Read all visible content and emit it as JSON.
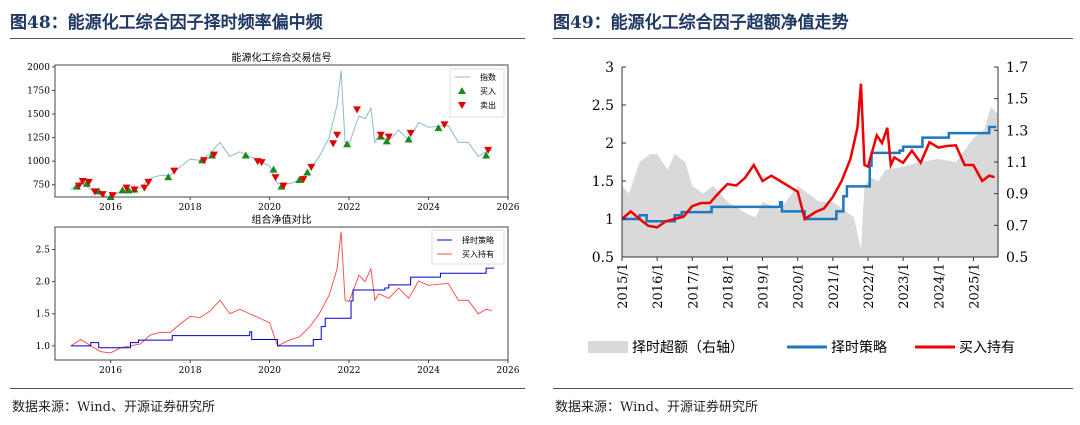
{
  "left": {
    "title": "图48：能源化工综合因子择时频率偏中频",
    "source": "数据来源：Wind、开源证券研究所"
  },
  "right": {
    "title": "图49：能源化工综合因子超额净值走势",
    "source": "数据来源：Wind、开源证券研究所"
  },
  "chart_data": [
    {
      "type": "line",
      "title": "能源化工综合交易信号",
      "xlim": [
        2014.6,
        2026
      ],
      "ylim": [
        620,
        2020
      ],
      "xticks": [
        "2016",
        "2018",
        "2020",
        "2022",
        "2024",
        "2026"
      ],
      "yticks": [
        "750",
        "1000",
        "1250",
        "1500",
        "1750",
        "2000"
      ],
      "legend": "top-right",
      "colors": {
        "index": "#8fb8d0",
        "buy": "#1a8a1a",
        "sell": "#e00000"
      },
      "series": [
        {
          "name": "指数",
          "x": [
            2015.0,
            2015.25,
            2015.5,
            2015.75,
            2016.0,
            2016.25,
            2016.5,
            2016.75,
            2017.0,
            2017.25,
            2017.5,
            2017.75,
            2018.0,
            2018.25,
            2018.5,
            2018.75,
            2019.0,
            2019.25,
            2019.5,
            2019.75,
            2020.0,
            2020.2,
            2020.5,
            2020.75,
            2021.0,
            2021.25,
            2021.5,
            2021.7,
            2021.8,
            2021.9,
            2022.0,
            2022.25,
            2022.4,
            2022.55,
            2022.65,
            2022.75,
            2023.0,
            2023.25,
            2023.5,
            2023.75,
            2024.0,
            2024.25,
            2024.5,
            2024.75,
            2025.0,
            2025.25,
            2025.45,
            2025.6
          ],
          "y": [
            700,
            780,
            700,
            640,
            620,
            680,
            700,
            720,
            820,
            850,
            850,
            940,
            1020,
            1010,
            1080,
            1200,
            1050,
            1100,
            1050,
            1000,
            950,
            760,
            760,
            800,
            900,
            1050,
            1250,
            1600,
            1960,
            1200,
            1180,
            1480,
            1450,
            1560,
            1200,
            1270,
            1220,
            1330,
            1220,
            1410,
            1360,
            1370,
            1380,
            1200,
            1200,
            1050,
            1100,
            1120
          ]
        }
      ],
      "buy": {
        "name": "买入",
        "x": [
          2015.15,
          2015.4,
          2015.7,
          2016.0,
          2016.3,
          2016.45,
          2016.6,
          2017.45,
          2018.3,
          2018.55,
          2019.4,
          2020.1,
          2020.3,
          2020.75,
          2020.95,
          2021.95,
          2022.8,
          2022.95,
          2023.5,
          2024.25,
          2025.45
        ],
        "y": [
          730,
          760,
          680,
          620,
          690,
          690,
          700,
          830,
          1010,
          1060,
          1060,
          910,
          730,
          800,
          880,
          1180,
          1260,
          1210,
          1230,
          1350,
          1060
        ]
      },
      "sell": {
        "name": "卖出",
        "x": [
          2015.2,
          2015.3,
          2015.45,
          2015.6,
          2015.8,
          2016.05,
          2016.4,
          2016.6,
          2016.85,
          2016.95,
          2017.6,
          2018.35,
          2018.6,
          2019.7,
          2019.8,
          2020.15,
          2020.35,
          2020.85,
          2021.05,
          2021.6,
          2021.7,
          2022.2,
          2022.8,
          2023.0,
          2023.55,
          2024.4,
          2025.5
        ],
        "y": [
          740,
          790,
          780,
          680,
          650,
          640,
          720,
          700,
          720,
          780,
          900,
          1010,
          1070,
          1000,
          990,
          830,
          740,
          810,
          940,
          1190,
          1280,
          1550,
          1280,
          1260,
          1300,
          1390,
          1120
        ]
      }
    },
    {
      "type": "line",
      "title": "组合净值对比",
      "xlim": [
        2014.6,
        2026
      ],
      "ylim": [
        0.78,
        2.85
      ],
      "xticks": [
        "2016",
        "2018",
        "2020",
        "2022",
        "2024",
        "2026"
      ],
      "yticks": [
        "1.0",
        "1.5",
        "2.0",
        "2.5"
      ],
      "legend": "top-right",
      "series": [
        {
          "name": "择时策略",
          "color": "#0000cc",
          "x": [
            2015.0,
            2015.5,
            2015.7,
            2016.3,
            2016.5,
            2016.7,
            2017.5,
            2017.55,
            2019.4,
            2019.5,
            2019.55,
            2020.1,
            2020.2,
            2020.9,
            2021.1,
            2021.3,
            2021.4,
            2021.9,
            2022.05,
            2022.1,
            2022.8,
            2022.9,
            2023.0,
            2023.5,
            2023.55,
            2024.2,
            2024.3,
            2025.4,
            2025.45,
            2025.65
          ],
          "y": [
            1.0,
            1.05,
            0.97,
            0.97,
            1.05,
            1.09,
            1.09,
            1.16,
            1.16,
            1.22,
            1.1,
            1.1,
            1.0,
            1.0,
            1.1,
            1.3,
            1.43,
            1.43,
            1.7,
            1.87,
            1.87,
            1.9,
            1.95,
            1.95,
            2.07,
            2.07,
            2.13,
            2.13,
            2.21,
            2.21
          ]
        },
        {
          "name": "买入持有",
          "color": "#ff4444",
          "x": [
            2015.0,
            2015.25,
            2015.5,
            2015.75,
            2016.0,
            2016.25,
            2016.5,
            2016.75,
            2017.0,
            2017.25,
            2017.5,
            2017.75,
            2018.0,
            2018.25,
            2018.5,
            2018.75,
            2019.0,
            2019.25,
            2019.5,
            2019.75,
            2020.0,
            2020.2,
            2020.5,
            2020.75,
            2021.0,
            2021.25,
            2021.5,
            2021.7,
            2021.8,
            2021.9,
            2022.0,
            2022.25,
            2022.4,
            2022.55,
            2022.65,
            2022.75,
            2023.0,
            2023.25,
            2023.5,
            2023.75,
            2024.0,
            2024.25,
            2024.5,
            2024.75,
            2025.0,
            2025.25,
            2025.45,
            2025.6
          ],
          "y": [
            1.0,
            1.1,
            1.0,
            0.91,
            0.89,
            0.97,
            1.0,
            1.03,
            1.17,
            1.21,
            1.21,
            1.34,
            1.46,
            1.44,
            1.54,
            1.71,
            1.5,
            1.57,
            1.5,
            1.43,
            1.36,
            1.0,
            1.09,
            1.14,
            1.29,
            1.5,
            1.79,
            2.2,
            2.78,
            1.71,
            1.69,
            2.1,
            2.0,
            2.2,
            1.71,
            1.81,
            1.74,
            1.9,
            1.74,
            2.01,
            1.94,
            1.96,
            1.97,
            1.71,
            1.71,
            1.5,
            1.57,
            1.55
          ]
        }
      ]
    },
    {
      "type": "area+line",
      "xlim": [
        2015.0,
        2025.7
      ],
      "ylim": [
        0.5,
        3
      ],
      "y2lim": [
        0.5,
        1.7
      ],
      "xticks": [
        "2015/1",
        "2016/1",
        "2017/1",
        "2018/1",
        "2019/1",
        "2020/1",
        "2021/1",
        "2022/1",
        "2023/1",
        "2024/1",
        "2025/1"
      ],
      "yticks": [
        "0.5",
        "1",
        "1.5",
        "2",
        "2.5",
        "3"
      ],
      "y2ticks": [
        "0.5",
        "0.7",
        "0.9",
        "1.1",
        "1.3",
        "1.5",
        "1.7"
      ],
      "legend": "bottom",
      "series": [
        {
          "name": "择时超额（右轴）",
          "axis": "right",
          "color": "#d9d9d9",
          "x": [
            2015.0,
            2015.2,
            2015.5,
            2015.8,
            2016.0,
            2016.3,
            2016.5,
            2016.8,
            2017.0,
            2017.3,
            2017.6,
            2018.0,
            2018.5,
            2018.8,
            2019.0,
            2019.5,
            2020.0,
            2020.3,
            2020.6,
            2021.0,
            2021.3,
            2021.6,
            2021.75,
            2021.8,
            2021.9,
            2022.1,
            2022.3,
            2022.5,
            2023.0,
            2023.5,
            2024.0,
            2024.5,
            2025.0,
            2025.3,
            2025.5,
            2025.7
          ],
          "y": [
            0.95,
            0.9,
            1.1,
            1.15,
            1.15,
            1.05,
            1.15,
            1.1,
            0.95,
            0.9,
            0.95,
            0.85,
            0.78,
            0.75,
            0.85,
            0.8,
            0.95,
            0.9,
            0.85,
            0.85,
            0.8,
            0.75,
            0.6,
            0.55,
            0.95,
            1.0,
            0.98,
            1.05,
            1.07,
            1.1,
            1.12,
            1.1,
            1.25,
            1.3,
            1.45,
            1.4
          ]
        },
        {
          "name": "择时策略",
          "axis": "left",
          "color": "#1f77c0",
          "ref": 1
        },
        {
          "name": "买入持有",
          "axis": "left",
          "color": "#ee0000",
          "ref": 1
        }
      ]
    }
  ]
}
